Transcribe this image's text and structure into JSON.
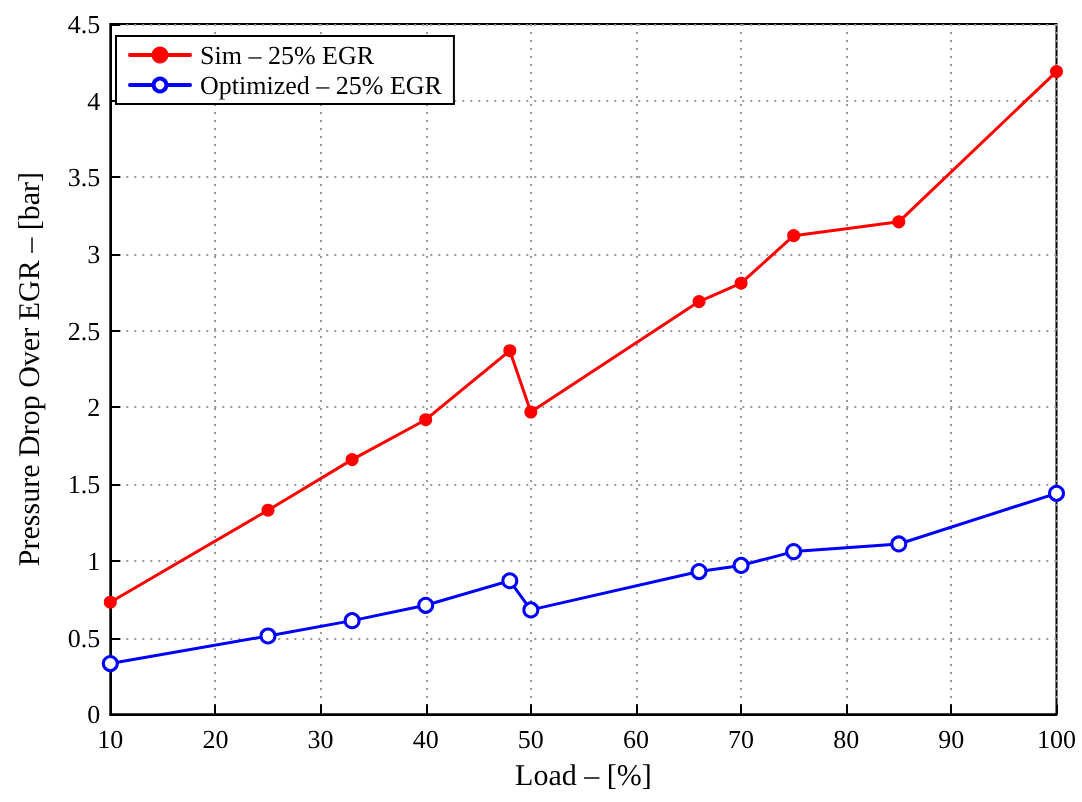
{
  "chart_data": {
    "type": "line",
    "xlabel": "Load – [%]",
    "ylabel": "Pressure Drop Over EGR – [bar]",
    "x": [
      10,
      25,
      33,
      40,
      48,
      50,
      66,
      70,
      75,
      85,
      100
    ],
    "series": [
      {
        "name": "Sim – 25% EGR",
        "color": "#ff0000",
        "marker": "circle",
        "values": [
          0.73,
          1.33,
          1.66,
          1.92,
          2.37,
          1.97,
          2.69,
          2.81,
          3.12,
          3.21,
          4.19
        ]
      },
      {
        "name": "Optimized – 25% EGR",
        "color": "#0000ff",
        "marker": "circle",
        "values": [
          0.33,
          0.51,
          0.61,
          0.71,
          0.87,
          0.68,
          0.93,
          0.97,
          1.06,
          1.11,
          1.44
        ]
      }
    ],
    "xlim": [
      10,
      100
    ],
    "xticks": [
      10,
      20,
      30,
      40,
      50,
      60,
      70,
      80,
      90,
      100
    ],
    "ylim": [
      0,
      4.5
    ],
    "yticks": [
      0,
      0.5,
      1,
      1.5,
      2,
      2.5,
      3,
      3.5,
      4,
      4.5
    ],
    "grid": true,
    "legend": "top left",
    "line_style": "solid"
  }
}
